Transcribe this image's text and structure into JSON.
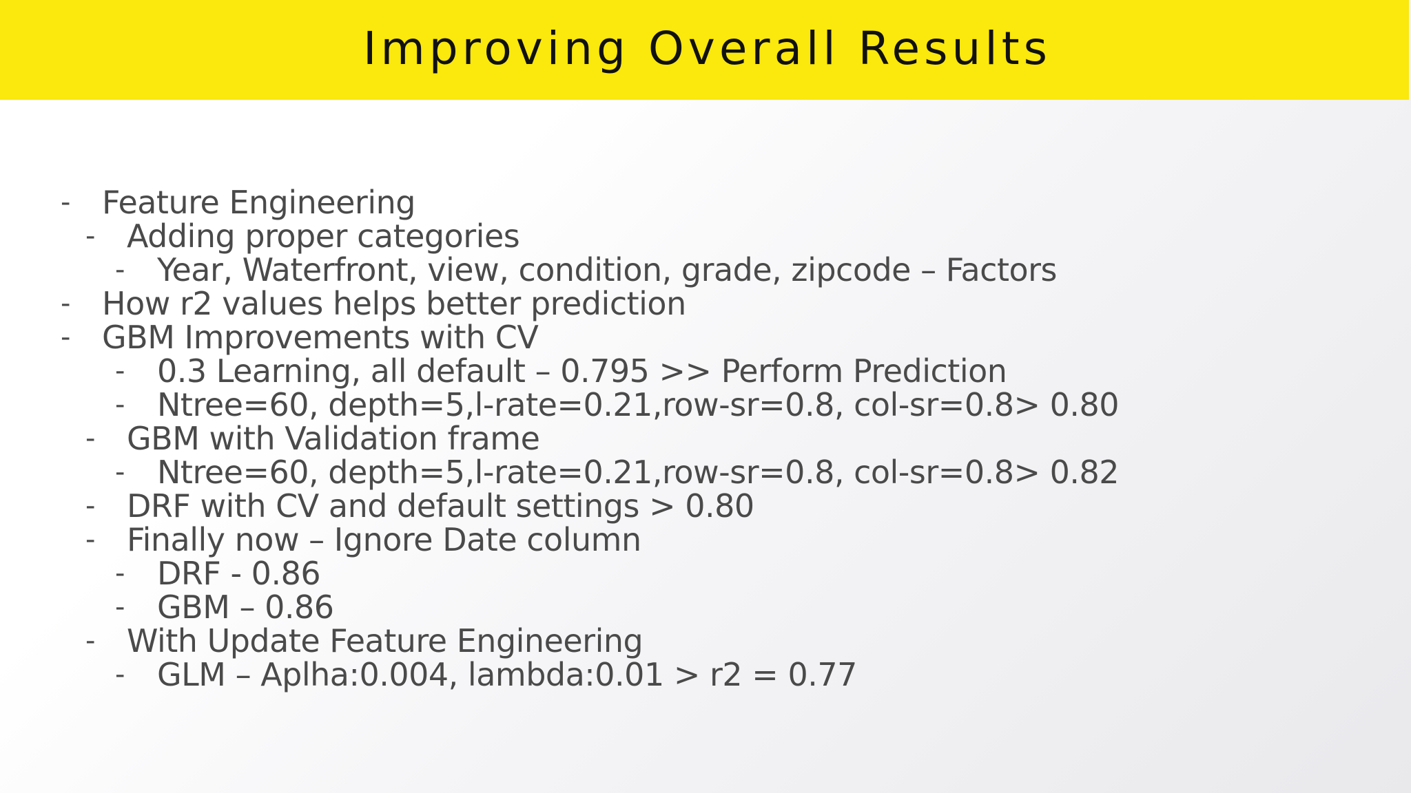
{
  "slide": {
    "title": "Improving Overall Results",
    "bullet_marker": "-",
    "items": [
      {
        "level": 0,
        "text": "Feature Engineering"
      },
      {
        "level": 1,
        "text": "Adding proper categories"
      },
      {
        "level": 2,
        "text": "Year, Waterfront, view, condition, grade, zipcode – Factors"
      },
      {
        "level": 0,
        "text": "How r2 values helps better prediction"
      },
      {
        "level": 0,
        "text": "GBM Improvements with CV"
      },
      {
        "level": 2,
        "text": "0.3 Learning, all default – 0.795 >> Perform Prediction"
      },
      {
        "level": 2,
        "text": "Ntree=60, depth=5,l-rate=0.21,row-sr=0.8, col-sr=0.8> 0.80"
      },
      {
        "level": 1,
        "text": "GBM with Validation frame"
      },
      {
        "level": 2,
        "text": "Ntree=60, depth=5,l-rate=0.21,row-sr=0.8, col-sr=0.8> 0.82"
      },
      {
        "level": 1,
        "text": "DRF with CV and default settings > 0.80"
      },
      {
        "level": 1,
        "text": "Finally now – Ignore Date column"
      },
      {
        "level": 2,
        "text": "DRF - 0.86"
      },
      {
        "level": 2,
        "text": "GBM – 0.86"
      },
      {
        "level": 1,
        "text": "With Update Feature Engineering"
      },
      {
        "level": 2,
        "text": "GLM – Aplha:0.004, lambda:0.01 > r2 = 0.77"
      }
    ]
  },
  "colors": {
    "title_bar": "#fbe80c",
    "title_text": "#111111",
    "body_text": "#4a4a4a"
  }
}
